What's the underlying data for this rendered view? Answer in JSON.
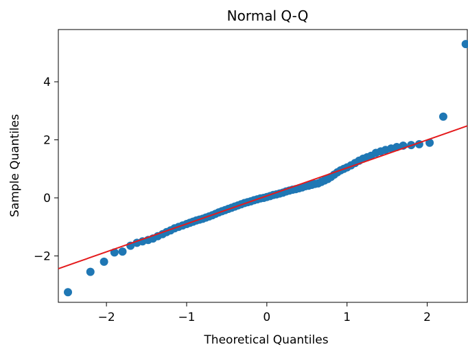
{
  "chart_data": {
    "type": "scatter",
    "title": "Normal Q-Q",
    "xlabel": "Theoretical Quantiles",
    "ylabel": "Sample Quantiles",
    "xlim": [
      -2.6,
      2.5
    ],
    "ylim": [
      -3.6,
      5.8
    ],
    "xticks": [
      -2,
      -1,
      0,
      1,
      2
    ],
    "xtick_labels": [
      "−2",
      "−1",
      "0",
      "1",
      "2"
    ],
    "yticks": [
      -2,
      0,
      2,
      4
    ],
    "ytick_labels": [
      "−2",
      "0",
      "2",
      "4"
    ],
    "grid": false,
    "colors": {
      "points": "#1f77b4",
      "line": "#e41a1c"
    },
    "reference_line": {
      "x": [
        -2.6,
        2.5
      ],
      "y": [
        -2.44,
        2.48
      ]
    },
    "series": [
      {
        "x": [
          -2.48,
          -2.2,
          -2.03,
          -1.9,
          -1.8,
          -1.7,
          -1.62,
          -1.55,
          -1.48,
          -1.42,
          -1.36,
          -1.3,
          -1.25,
          -1.2,
          -1.15,
          -1.1,
          -1.05,
          -1.0,
          -0.96,
          -0.92,
          -0.88,
          -0.84,
          -0.8,
          -0.76,
          -0.72,
          -0.68,
          -0.64,
          -0.6,
          -0.56,
          -0.52,
          -0.48,
          -0.44,
          -0.4,
          -0.36,
          -0.32,
          -0.28,
          -0.24,
          -0.2,
          -0.16,
          -0.12,
          -0.08,
          -0.04,
          0.0,
          0.04,
          0.08,
          0.12,
          0.16,
          0.2,
          0.24,
          0.28,
          0.32,
          0.36,
          0.4,
          0.44,
          0.48,
          0.52,
          0.56,
          0.6,
          0.64,
          0.68,
          0.72,
          0.76,
          0.8,
          0.84,
          0.88,
          0.92,
          0.96,
          1.0,
          1.05,
          1.1,
          1.15,
          1.2,
          1.25,
          1.3,
          1.36,
          1.42,
          1.48,
          1.55,
          1.62,
          1.7,
          1.8,
          1.9,
          2.03,
          2.2,
          2.48
        ],
        "y": [
          -3.25,
          -2.55,
          -2.2,
          -1.88,
          -1.85,
          -1.65,
          -1.55,
          -1.5,
          -1.45,
          -1.4,
          -1.32,
          -1.25,
          -1.18,
          -1.12,
          -1.05,
          -1.0,
          -0.95,
          -0.9,
          -0.86,
          -0.82,
          -0.78,
          -0.75,
          -0.72,
          -0.68,
          -0.64,
          -0.6,
          -0.55,
          -0.5,
          -0.46,
          -0.42,
          -0.38,
          -0.34,
          -0.3,
          -0.26,
          -0.22,
          -0.18,
          -0.15,
          -0.12,
          -0.08,
          -0.05,
          -0.02,
          0.0,
          0.03,
          0.06,
          0.1,
          0.12,
          0.15,
          0.18,
          0.22,
          0.25,
          0.28,
          0.3,
          0.33,
          0.36,
          0.4,
          0.42,
          0.45,
          0.48,
          0.5,
          0.55,
          0.6,
          0.65,
          0.72,
          0.8,
          0.88,
          0.95,
          1.0,
          1.05,
          1.12,
          1.2,
          1.28,
          1.35,
          1.4,
          1.45,
          1.55,
          1.6,
          1.65,
          1.7,
          1.75,
          1.8,
          1.82,
          1.85,
          1.9,
          2.8,
          5.3
        ]
      }
    ]
  }
}
